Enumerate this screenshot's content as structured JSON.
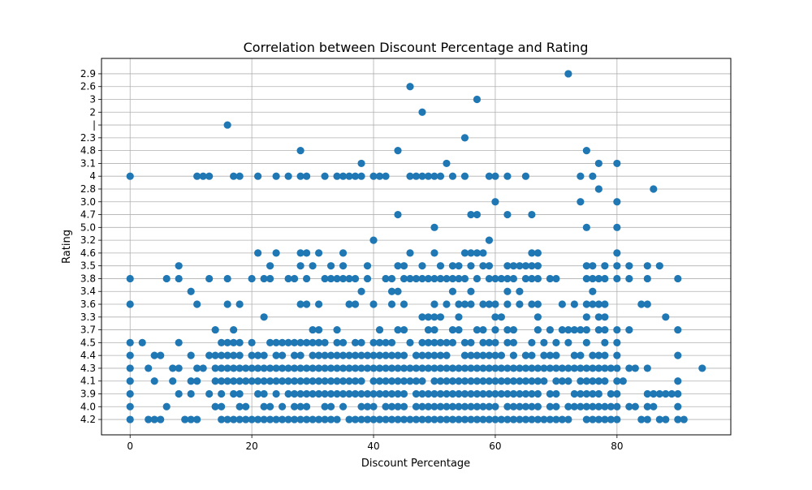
{
  "chart_data": {
    "type": "scatter",
    "title": "Correlation between Discount Percentage and Rating",
    "xlabel": "Discount Percentage",
    "ylabel": "Rating",
    "xlim": [
      -4.7,
      98.7
    ],
    "x_ticks": [
      0,
      20,
      40,
      60,
      80
    ],
    "y_categories": [
      "4.2",
      "4.0",
      "3.9",
      "4.1",
      "4.3",
      "4.4",
      "4.5",
      "3.7",
      "3.3",
      "3.6",
      "3.4",
      "3.8",
      "3.5",
      "4.6",
      "3.2",
      "5.0",
      "4.7",
      "3.0",
      "2.8",
      "4",
      "3.1",
      "4.8",
      "2.3",
      "|",
      "2",
      "3",
      "2.6",
      "2.9"
    ],
    "grid": true,
    "marker_color": "#1f77b4",
    "points": [
      {
        "y": "4.2",
        "x": [
          0,
          3,
          4,
          5,
          9,
          10,
          11,
          15,
          16,
          17,
          18,
          19,
          20,
          21,
          22,
          23,
          24,
          25,
          26,
          27,
          28,
          29,
          30,
          31,
          32,
          33,
          34,
          36,
          37,
          38,
          39,
          40,
          41,
          42,
          43,
          44,
          45,
          46,
          47,
          48,
          49,
          50,
          51,
          52,
          53,
          54,
          55,
          56,
          57,
          58,
          59,
          60,
          61,
          62,
          63,
          64,
          65,
          66,
          67,
          68,
          69,
          70,
          71,
          72,
          75,
          76,
          77,
          78,
          79,
          80,
          84,
          85,
          87,
          88,
          90,
          91
        ]
      },
      {
        "y": "4.0",
        "x": [
          0,
          6,
          14,
          15,
          18,
          19,
          22,
          23,
          25,
          27,
          28,
          29,
          32,
          33,
          35,
          38,
          39,
          40,
          42,
          43,
          44,
          45,
          47,
          48,
          49,
          50,
          51,
          52,
          53,
          54,
          55,
          56,
          57,
          58,
          59,
          60,
          62,
          63,
          64,
          65,
          66,
          67,
          69,
          70,
          72,
          73,
          74,
          75,
          76,
          77,
          78,
          79,
          80,
          82,
          83,
          85,
          86,
          90
        ]
      },
      {
        "y": "3.9",
        "x": [
          0,
          8,
          10,
          13,
          15,
          17,
          18,
          21,
          22,
          24,
          26,
          27,
          28,
          29,
          30,
          31,
          32,
          33,
          34,
          35,
          36,
          37,
          38,
          39,
          40,
          41,
          42,
          43,
          44,
          45,
          47,
          48,
          49,
          50,
          51,
          52,
          53,
          54,
          55,
          56,
          57,
          58,
          59,
          60,
          61,
          62,
          63,
          64,
          65,
          66,
          67,
          69,
          70,
          73,
          74,
          75,
          76,
          77,
          79,
          80,
          85,
          86,
          87,
          88,
          89,
          90
        ]
      },
      {
        "y": "4.1",
        "x": [
          0,
          4,
          7,
          10,
          11,
          14,
          15,
          16,
          17,
          18,
          19,
          20,
          21,
          22,
          23,
          24,
          25,
          26,
          27,
          28,
          29,
          30,
          31,
          32,
          33,
          34,
          35,
          36,
          37,
          38,
          40,
          41,
          42,
          43,
          44,
          45,
          46,
          47,
          48,
          50,
          51,
          52,
          53,
          54,
          55,
          56,
          57,
          58,
          59,
          60,
          61,
          62,
          63,
          64,
          65,
          66,
          67,
          68,
          70,
          71,
          72,
          74,
          75,
          76,
          77,
          78,
          80,
          81,
          90
        ]
      },
      {
        "y": "4.3",
        "x": [
          0,
          3,
          7,
          8,
          11,
          12,
          14,
          15,
          16,
          17,
          18,
          19,
          20,
          21,
          22,
          23,
          24,
          25,
          26,
          27,
          28,
          29,
          30,
          31,
          32,
          33,
          34,
          35,
          36,
          37,
          38,
          39,
          40,
          41,
          42,
          43,
          44,
          45,
          46,
          47,
          48,
          49,
          50,
          51,
          52,
          53,
          54,
          55,
          56,
          57,
          58,
          59,
          60,
          61,
          62,
          63,
          64,
          65,
          66,
          67,
          68,
          69,
          70,
          71,
          72,
          73,
          74,
          75,
          76,
          77,
          78,
          79,
          80,
          82,
          83,
          85,
          94
        ]
      },
      {
        "y": "4.4",
        "x": [
          0,
          4,
          5,
          10,
          13,
          14,
          15,
          16,
          17,
          18,
          20,
          21,
          22,
          24,
          25,
          27,
          28,
          30,
          31,
          32,
          33,
          34,
          35,
          36,
          37,
          38,
          39,
          40,
          41,
          42,
          43,
          44,
          45,
          47,
          48,
          49,
          50,
          51,
          52,
          55,
          56,
          57,
          58,
          59,
          60,
          61,
          63,
          65,
          66,
          68,
          69,
          70,
          73,
          74,
          76,
          77,
          78,
          80,
          90
        ]
      },
      {
        "y": "4.5",
        "x": [
          0,
          2,
          8,
          15,
          16,
          17,
          18,
          20,
          23,
          24,
          25,
          26,
          27,
          28,
          29,
          30,
          31,
          32,
          34,
          35,
          37,
          38,
          40,
          41,
          42,
          43,
          46,
          48,
          49,
          50,
          51,
          52,
          53,
          55,
          56,
          58,
          59,
          60,
          62,
          63,
          66,
          68,
          70,
          72,
          75,
          78,
          80
        ]
      },
      {
        "y": "3.7",
        "x": [
          14,
          17,
          30,
          31,
          34,
          41,
          44,
          45,
          49,
          50,
          53,
          54,
          57,
          58,
          60,
          62,
          63,
          67,
          69,
          71,
          72,
          73,
          74,
          75,
          77,
          78,
          80,
          82,
          90
        ]
      },
      {
        "y": "3.3",
        "x": [
          22,
          48,
          49,
          50,
          51,
          54,
          60,
          61,
          67,
          75,
          77,
          78,
          88
        ]
      },
      {
        "y": "3.6",
        "x": [
          0,
          11,
          16,
          18,
          28,
          29,
          31,
          36,
          37,
          40,
          43,
          45,
          50,
          52,
          54,
          55,
          56,
          58,
          59,
          60,
          62,
          64,
          66,
          67,
          71,
          73,
          75,
          76,
          77,
          78,
          84,
          85
        ]
      },
      {
        "y": "3.4",
        "x": [
          10,
          38,
          43,
          44,
          53,
          56,
          62,
          64,
          76
        ]
      },
      {
        "y": "3.8",
        "x": [
          0,
          6,
          8,
          13,
          16,
          20,
          22,
          23,
          26,
          27,
          29,
          32,
          33,
          34,
          35,
          36,
          37,
          39,
          42,
          43,
          45,
          46,
          47,
          48,
          49,
          50,
          51,
          52,
          53,
          54,
          55,
          57,
          59,
          60,
          61,
          62,
          63,
          65,
          66,
          67,
          69,
          70,
          75,
          76,
          77,
          78,
          80,
          82,
          85,
          90
        ]
      },
      {
        "y": "3.5",
        "x": [
          8,
          23,
          28,
          30,
          33,
          35,
          39,
          44,
          45,
          48,
          51,
          53,
          54,
          56,
          58,
          59,
          62,
          63,
          64,
          65,
          66,
          67,
          75,
          76,
          78,
          80,
          82,
          85,
          87
        ]
      },
      {
        "y": "4.6",
        "x": [
          21,
          24,
          28,
          29,
          31,
          35,
          46,
          50,
          55,
          56,
          57,
          58,
          66,
          67,
          80
        ]
      },
      {
        "y": "3.2",
        "x": [
          40,
          59
        ]
      },
      {
        "y": "5.0",
        "x": [
          50,
          75,
          80
        ]
      },
      {
        "y": "4.7",
        "x": [
          44,
          56,
          57,
          62,
          66
        ]
      },
      {
        "y": "3.0",
        "x": [
          60,
          74,
          80
        ]
      },
      {
        "y": "2.8",
        "x": [
          77,
          86
        ]
      },
      {
        "y": "4",
        "x": [
          0,
          11,
          12,
          13,
          17,
          18,
          21,
          24,
          26,
          28,
          29,
          32,
          34,
          35,
          36,
          37,
          38,
          40,
          41,
          42,
          46,
          47,
          48,
          49,
          50,
          51,
          53,
          55,
          59,
          60,
          62,
          65,
          74,
          76
        ]
      },
      {
        "y": "3.1",
        "x": [
          38,
          52,
          77,
          80
        ]
      },
      {
        "y": "4.8",
        "x": [
          28,
          44,
          75
        ]
      },
      {
        "y": "2.3",
        "x": [
          55
        ]
      },
      {
        "y": "|",
        "x": [
          16
        ]
      },
      {
        "y": "2",
        "x": [
          48
        ]
      },
      {
        "y": "3",
        "x": [
          57
        ]
      },
      {
        "y": "2.6",
        "x": [
          46
        ]
      },
      {
        "y": "2.9",
        "x": [
          72
        ]
      }
    ]
  }
}
